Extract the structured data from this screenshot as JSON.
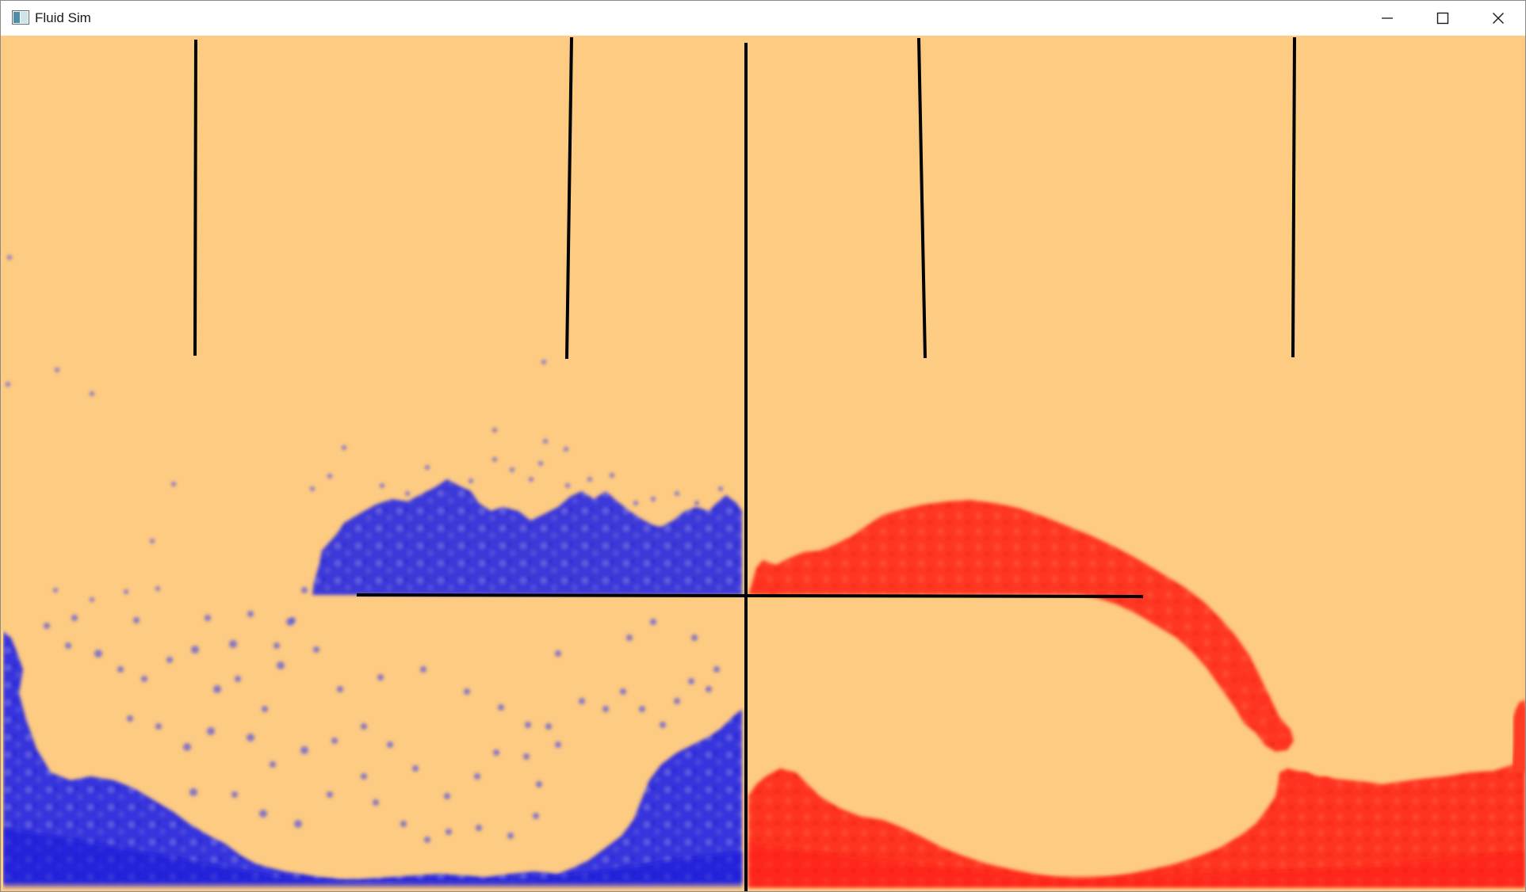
{
  "window": {
    "title": "Fluid Sim",
    "icon": "app-window-icon",
    "controls": {
      "minimize_icon": "minimize-icon",
      "maximize_icon": "maximize-icon",
      "close_icon": "close-icon"
    }
  },
  "simulation": {
    "colors": {
      "background": "#fecb82",
      "fluid_left": "#2222dd",
      "fluid_right": "#ff2a1a",
      "walls": "#000000"
    }
  }
}
